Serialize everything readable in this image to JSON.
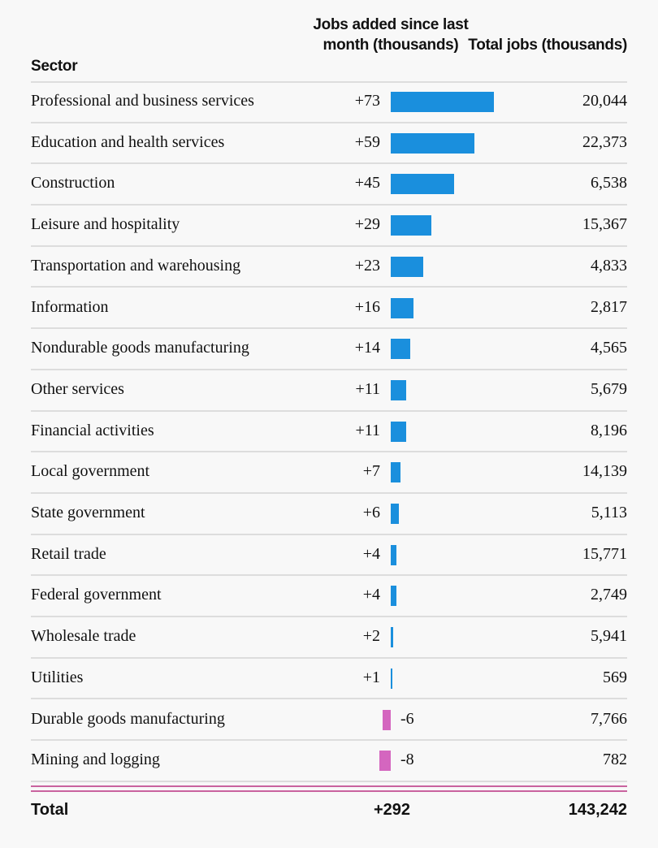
{
  "chart_data": {
    "type": "table",
    "columns": [
      "Sector",
      "Jobs added since last month (thousands)",
      "Total jobs (thousands)"
    ],
    "colors": {
      "positive": "#1a8fdd",
      "negative": "#d466bf"
    },
    "rows": [
      {
        "sector": "Professional and business services",
        "change": 73,
        "change_label": "+73",
        "total": "20,044"
      },
      {
        "sector": "Education and health services",
        "change": 59,
        "change_label": "+59",
        "total": "22,373"
      },
      {
        "sector": "Construction",
        "change": 45,
        "change_label": "+45",
        "total": "6,538"
      },
      {
        "sector": "Leisure and hospitality",
        "change": 29,
        "change_label": "+29",
        "total": "15,367"
      },
      {
        "sector": "Transportation and warehousing",
        "change": 23,
        "change_label": "+23",
        "total": "4,833"
      },
      {
        "sector": "Information",
        "change": 16,
        "change_label": "+16",
        "total": "2,817"
      },
      {
        "sector": "Nondurable goods manufacturing",
        "change": 14,
        "change_label": "+14",
        "total": "4,565"
      },
      {
        "sector": "Other services",
        "change": 11,
        "change_label": "+11",
        "total": "5,679"
      },
      {
        "sector": "Financial activities",
        "change": 11,
        "change_label": "+11",
        "total": "8,196"
      },
      {
        "sector": "Local government",
        "change": 7,
        "change_label": "+7",
        "total": "14,139"
      },
      {
        "sector": "State government",
        "change": 6,
        "change_label": "+6",
        "total": "5,113"
      },
      {
        "sector": "Retail trade",
        "change": 4,
        "change_label": "+4",
        "total": "15,771"
      },
      {
        "sector": "Federal government",
        "change": 4,
        "change_label": "+4",
        "total": "2,749"
      },
      {
        "sector": "Wholesale trade",
        "change": 2,
        "change_label": "+2",
        "total": "5,941"
      },
      {
        "sector": "Utilities",
        "change": 1,
        "change_label": "+1",
        "total": "569"
      },
      {
        "sector": "Durable goods manufacturing",
        "change": -6,
        "change_label": "-6",
        "total": "7,766"
      },
      {
        "sector": "Mining and logging",
        "change": -8,
        "change_label": "-8",
        "total": "782"
      }
    ],
    "total": {
      "label": "Total",
      "change": "+292",
      "total": "143,242"
    }
  }
}
